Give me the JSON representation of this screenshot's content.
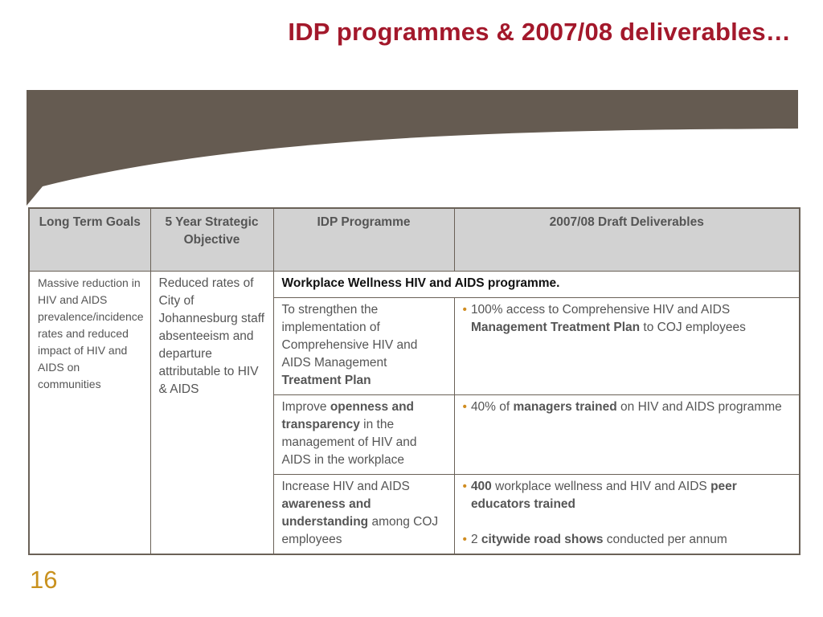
{
  "title": "IDP programmes & 2007/08 deliverables…",
  "colors": {
    "title": "#a3182b",
    "banner": "#655b51",
    "header_bg": "#d2d2d2",
    "bullet": "#d08c20",
    "page_number": "#c9911e"
  },
  "table": {
    "headers": [
      "Long Term Goals",
      "5 Year Strategic Objective",
      "IDP Programme",
      "2007/08 Draft Deliverables"
    ],
    "goal": "Massive reduction in HIV and AIDS prevalence/incidence rates and reduced impact of HIV and AIDS on communities",
    "objective": "Reduced rates of City of Johannesburg staff absenteeism and departure attributable to HIV & AIDS",
    "programme_title": "Workplace Wellness HIV and AIDS programme.",
    "rows": [
      {
        "idp": {
          "p1": "To strengthen the implementation of Comprehensive HIV and AIDS Management ",
          "b1": "Treatment Plan"
        },
        "deliverables": [
          {
            "t1": "100% access to Comprehensive HIV and AIDS ",
            "b1": "Management Treatment Plan",
            "t2": " to COJ employees"
          }
        ]
      },
      {
        "idp": {
          "p1": "Improve ",
          "b1": "openness and transparency",
          "p2": " in the management of HIV and AIDS in the workplace"
        },
        "deliverables": [
          {
            "t1": "40% of ",
            "b1": "managers trained",
            "t2": " on HIV and AIDS programme"
          }
        ]
      },
      {
        "idp": {
          "p1": "Increase HIV and AIDS ",
          "b1": "awareness and understanding",
          "p2": " among COJ employees"
        },
        "deliverables": [
          {
            "b0": "400",
            "t1": " workplace wellness and HIV and AIDS ",
            "b1": "peer educators trained"
          },
          {
            "t0": "2 ",
            "b1": "citywide road shows",
            "t2": " conducted per annum"
          }
        ]
      }
    ]
  },
  "page_number": "16"
}
